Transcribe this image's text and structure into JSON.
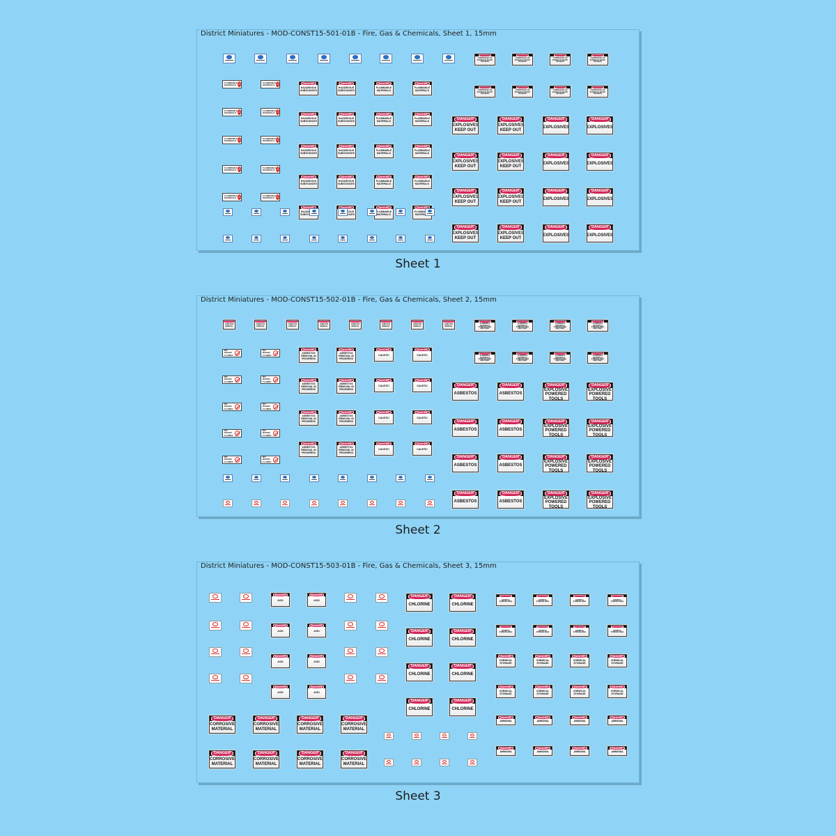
{
  "colors": {
    "background": "#8fd4f6",
    "danger_header": "#111111",
    "danger_pill": "#d2295a",
    "mandatory_blue": "#2b6fc5",
    "prohibition_red": "#d82a2a"
  },
  "danger_label": "DANGER",
  "sheets": [
    {
      "title": "District Miniatures - MOD-CONST15-501-01B - Fire, Gas & Chemicals, Sheet 1, 15mm",
      "caption": "Sheet 1",
      "flammable_text": "FLAMMABLE\nMATERIALS",
      "signs": {
        "compressed": "COMPRESSED AIR\nDANGER OF INJURY\nOR DEATH",
        "hazardous": "HAZARDOUS\nSUBSTANCES",
        "flammable": "FLAMMABLE\nMATERIALS",
        "explosives_keep_out": "EXPLOSIVES\nKEEP OUT",
        "explosives": "EXPLOSIVES"
      }
    },
    {
      "title": "District Miniatures - MOD-CONST15-502-01B - Fire, Gas & Chemicals, Sheet 2, 15mm",
      "caption": "Sheet 2",
      "flammable_text": "NO NAKED\nFLAMES",
      "signs": {
        "top_small": "ASBESTOS\nREMOVAL",
        "flammable_right": "FLAMMABLE MATERIALS\nSTORAGE AREA\nKEEP AWAY",
        "asbestos_removal": "ASBESTOS\nREMOVAL IN\nPROGRESS",
        "caustic": "CAUSTIC",
        "asbestos": "ASBESTOS",
        "explosive_tools": "EXPLOSIVE\nPOWERED TOOLS\nIN USE"
      }
    },
    {
      "title": "District Miniatures - MOD-CONST15-503-01B - Fire, Gas & Chemicals, Sheet 3, 15mm",
      "caption": "Sheet 3",
      "signs": {
        "acid": "ACID",
        "chlorine": "CHLORINE",
        "chemical_storage_area": "CHEMICAL\nSTORAGE AREA",
        "chemical_storage": "CHEMICAL\nSTORAGE",
        "ammonia": "AMMONIA",
        "corrosive": "CORROSIVE\nMATERIAL"
      }
    }
  ]
}
